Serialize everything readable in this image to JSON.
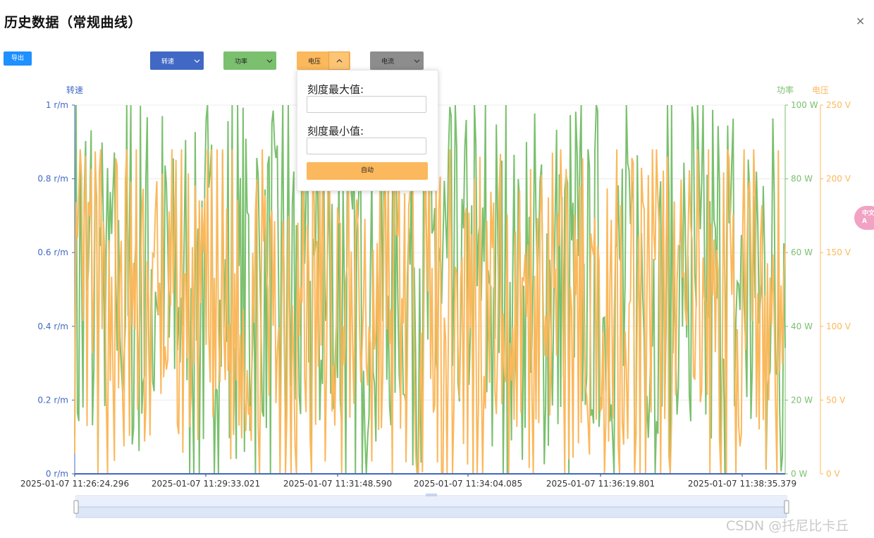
{
  "dialog": {
    "title": "历史数据（常规曲线）",
    "close_label": "×",
    "export_label": "导出"
  },
  "axis_buttons": [
    {
      "label": "转速",
      "color": "#4068c4",
      "expanded": false
    },
    {
      "label": "功率",
      "color": "#7ac06e",
      "expanded": false
    },
    {
      "label": "电压",
      "color": "#fbb85c",
      "expanded": true
    },
    {
      "label": "电流",
      "color": "#8d8d8d",
      "expanded": false
    }
  ],
  "icons": {
    "close": "close-icon",
    "chevron_down": "chevron-down-icon",
    "chevron_up": "chevron-up-icon"
  },
  "popover": {
    "max_label": "刻度最大值:",
    "max_value": "",
    "min_label": "刻度最小值:",
    "min_value": "",
    "auto_label": "自动"
  },
  "side_badge": {
    "line1": "中文",
    "line2": "A"
  },
  "watermark": "CSDN @托尼比卡丘",
  "chart_data": {
    "type": "line",
    "x_labels": [
      "2025-01-07 11:26:24.296",
      "2025-01-07 11:29:33.021",
      "2025-01-07 11:31:48.590",
      "2025-01-07 11:34:04.085",
      "2025-01-07 11:36:19.801",
      "2025-01-07 11:38:35.379"
    ],
    "axes": [
      {
        "name": "转速",
        "position": "left",
        "unit": "r/m",
        "min": 0,
        "max": 1,
        "ticks": [
          "0 r/m",
          "0.2 r/m",
          "0.4 r/m",
          "0.6 r/m",
          "0.8 r/m",
          "1 r/m"
        ],
        "color": "#4068c4"
      },
      {
        "name": "功率",
        "position": "right",
        "unit": "W",
        "min": 0,
        "max": 100,
        "ticks": [
          "0 W",
          "20 W",
          "40 W",
          "60 W",
          "80 W",
          "100 W"
        ],
        "color": "#7ac06e"
      },
      {
        "name": "电压",
        "position": "right",
        "unit": "V",
        "min": 0,
        "max": 250,
        "ticks": [
          "0 V",
          "50 V",
          "100 V",
          "150 V",
          "200 V",
          "250 V"
        ],
        "color": "#fbb85c"
      }
    ],
    "series": [
      {
        "name": "转速",
        "axis": 0,
        "color": "#4068c4",
        "constant": 0
      },
      {
        "name": "功率",
        "axis": 1,
        "color": "#7ac06e",
        "points": 520,
        "range": [
          0,
          100
        ],
        "seed": 7
      },
      {
        "name": "电压",
        "axis": 2,
        "color": "#fbb85c",
        "points": 520,
        "range": [
          0,
          220
        ],
        "seed": 13
      }
    ],
    "legend": "top",
    "grid": true,
    "datazoom": {
      "start": 0,
      "end": 100
    }
  }
}
